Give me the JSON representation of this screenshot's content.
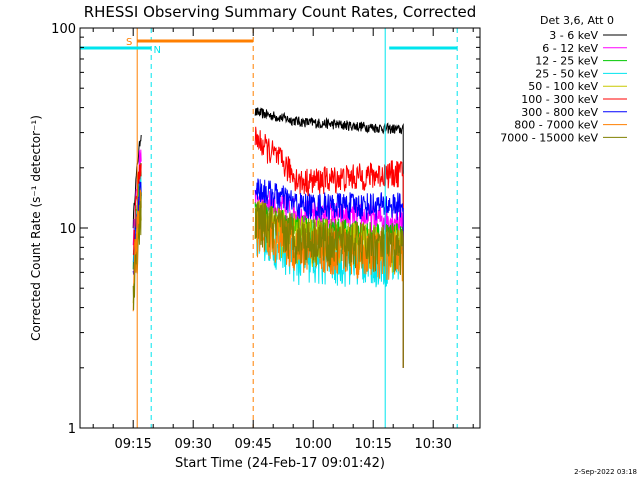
{
  "chart_data": {
    "type": "line",
    "title": "RHESSI Observing Summary Count Rates, Corrected",
    "xlabel": "Start Time (24-Feb-17 09:01:42)",
    "ylabel": "Corrected Count Rate (s⁻¹ detector⁻¹)",
    "y_scale": "log",
    "ylim": [
      1,
      100
    ],
    "xlim": [
      "09:01:42",
      "10:41:42"
    ],
    "x_ticks": [
      "09:15",
      "09:30",
      "09:45",
      "10:00",
      "10:15",
      "10:30"
    ],
    "y_ticks": [
      "1",
      "10",
      "100"
    ],
    "legend_title": "Det 3,6, Att 0",
    "legend_position": "right",
    "footer_date": "2-Sep-2022 03:18",
    "flags": [
      {
        "label": "S",
        "color": "#ff7f00",
        "start": "09:16",
        "end": "09:45",
        "level": "upper"
      },
      {
        "label": "N",
        "color": "#00e5ee",
        "start": "09:01:42",
        "end": "09:19:30",
        "level": "lower"
      },
      {
        "label": "",
        "color": "#00e5ee",
        "start": "10:19",
        "end": "10:36",
        "level": "lower"
      }
    ],
    "markers": [
      {
        "time": "09:16",
        "color": "#ff7f00",
        "style": "solid"
      },
      {
        "time": "09:19:30",
        "color": "#00e5ee",
        "style": "dashed"
      },
      {
        "time": "09:45",
        "color": "#ff7f00",
        "style": "dashed"
      },
      {
        "time": "10:18",
        "color": "#00e5ee",
        "style": "solid"
      },
      {
        "time": "10:36",
        "color": "#00e5ee",
        "style": "dashed"
      },
      {
        "time": "09:01:42",
        "color": "#00e5ee",
        "style": "solid"
      }
    ],
    "segments": [
      {
        "start": "09:15:00",
        "end": "09:17:00"
      },
      {
        "start": "09:45:30",
        "end": "10:22:30"
      }
    ],
    "series": [
      {
        "name": "3 - 6 keV",
        "color": "#000000",
        "level_short": 30,
        "level_long": [
          38,
          34,
          31
        ]
      },
      {
        "name": "6 - 12 keV",
        "color": "#ff00ff",
        "level_short": 25,
        "level_long": [
          14,
          12,
          11
        ]
      },
      {
        "name": "12 - 25 keV",
        "color": "#00c800",
        "level_short": 20,
        "level_long": [
          12,
          10,
          9
        ]
      },
      {
        "name": "25 - 50 keV",
        "color": "#00e5ee",
        "level_short": 18,
        "level_long": [
          10,
          7,
          7
        ]
      },
      {
        "name": "50 - 100 keV",
        "color": "#c8c800",
        "level_short": 15,
        "level_long": [
          11,
          9,
          8
        ]
      },
      {
        "name": "100 - 300 keV",
        "color": "#ff0000",
        "level_short": 22,
        "level_long": [
          28,
          17,
          19
        ]
      },
      {
        "name": "300 - 800 keV",
        "color": "#0000ff",
        "level_short": 17,
        "level_long": [
          16,
          13,
          13
        ]
      },
      {
        "name": "800 - 7000 keV",
        "color": "#ff7f00",
        "level_short": 14,
        "level_long": [
          10,
          8,
          7.5
        ]
      },
      {
        "name": "7000 - 15000 keV",
        "color": "#808000",
        "level_short": 12,
        "level_long": [
          11,
          9,
          8
        ]
      }
    ]
  }
}
